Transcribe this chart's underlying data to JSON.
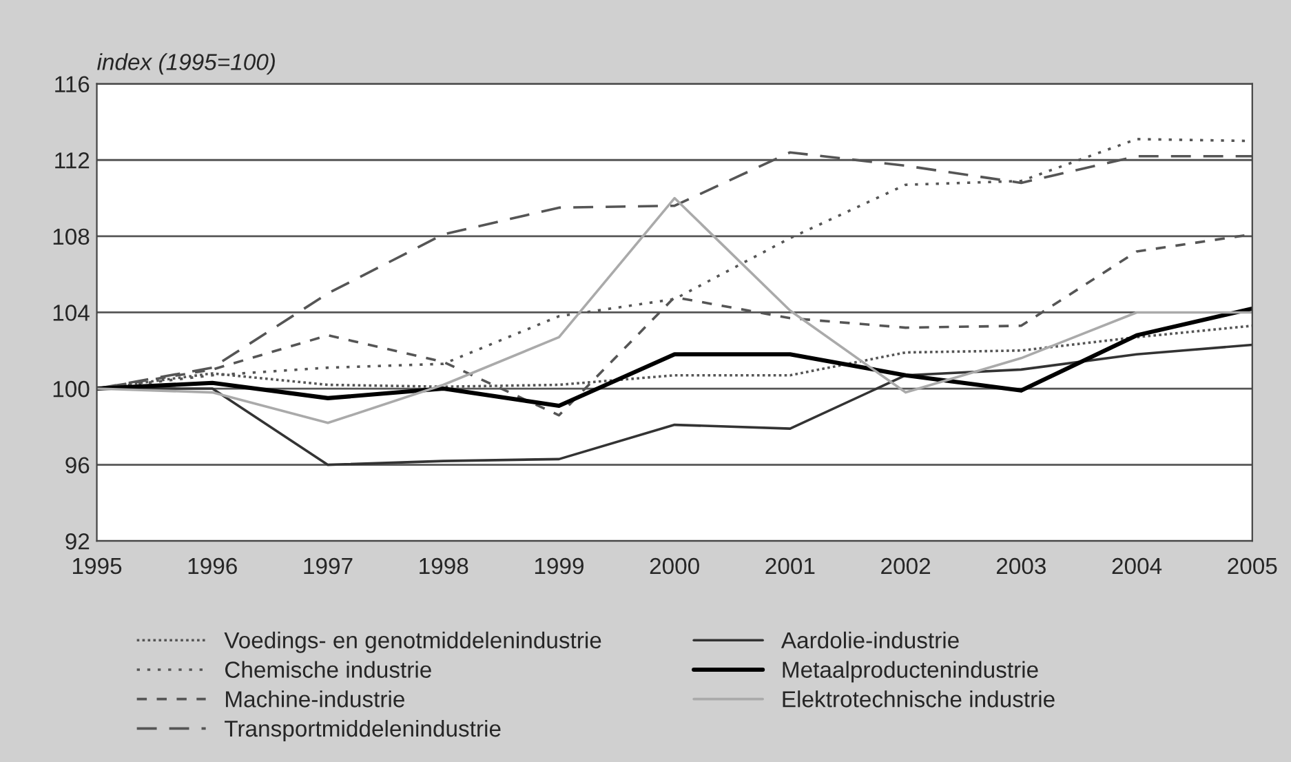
{
  "chart_data": {
    "type": "line",
    "ylabel": "index (1995=100)",
    "x": [
      1995,
      1996,
      1997,
      1998,
      1999,
      2000,
      2001,
      2002,
      2003,
      2004,
      2005
    ],
    "xlim": [
      1995,
      2005
    ],
    "xticks": [
      1995,
      1996,
      1997,
      1998,
      1999,
      2000,
      2001,
      2002,
      2003,
      2004,
      2005
    ],
    "ylim": [
      92,
      116
    ],
    "yticks": [
      92,
      96,
      100,
      104,
      108,
      112,
      116
    ],
    "grid": "y",
    "legend": "bottom",
    "marker": "none",
    "series": [
      {
        "name": "Voedings- en genotmiddelenindustrie",
        "color": "#555555",
        "line_style": "dotted",
        "values": [
          100,
          100.8,
          100.2,
          100.1,
          100.2,
          100.7,
          100.7,
          101.9,
          102.0,
          102.7,
          103.3
        ]
      },
      {
        "name": "Chemische industrie",
        "color": "#555555",
        "line_style": "dotted",
        "values": [
          100,
          100.7,
          101.1,
          101.3,
          103.8,
          104.7,
          107.9,
          110.7,
          110.9,
          113.1,
          113.0
        ]
      },
      {
        "name": "Machine-industrie",
        "color": "#555555",
        "line_style": "dashed",
        "values": [
          100,
          101.0,
          102.8,
          101.4,
          98.6,
          104.8,
          103.7,
          103.2,
          103.3,
          107.2,
          108.1
        ]
      },
      {
        "name": "Transportmiddelenindustrie",
        "color": "#555555",
        "line_style": "dashed",
        "values": [
          100,
          101.1,
          105.0,
          108.1,
          109.5,
          109.6,
          112.4,
          111.7,
          110.8,
          112.2,
          112.2
        ]
      },
      {
        "name": "Aardolie-industrie",
        "color": "#333333",
        "line_style": "solid",
        "values": [
          100,
          100,
          96.0,
          96.2,
          96.3,
          98.1,
          97.9,
          100.7,
          101.0,
          101.8,
          102.3
        ]
      },
      {
        "name": "Metaalproductenindustrie",
        "color": "#000000",
        "line_style": "solid",
        "values": [
          100,
          100.3,
          99.5,
          100,
          99.1,
          101.8,
          101.8,
          100.7,
          99.9,
          102.8,
          104.2
        ]
      },
      {
        "name": "Elektrotechnische industrie",
        "color": "#aaaaaa",
        "line_style": "solid",
        "values": [
          100,
          99.8,
          98.2,
          100.2,
          102.7,
          110.0,
          104.1,
          99.8,
          101.6,
          104.0,
          104.0
        ]
      }
    ]
  }
}
